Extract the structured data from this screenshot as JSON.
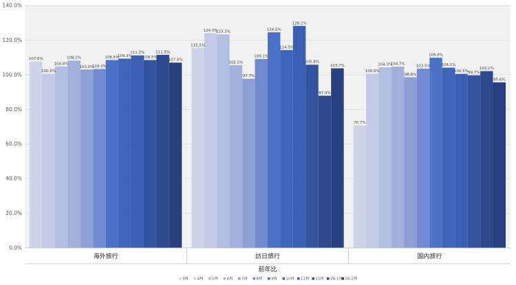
{
  "chart_data": {
    "type": "bar",
    "categories": [
      "海外旅行",
      "訪日旅行",
      "国内旅行"
    ],
    "xlabel": "前年比",
    "ylabel": "",
    "ylim": [
      0,
      140
    ],
    "yticks": [
      "0.0%",
      "20.0%",
      "40.0%",
      "60.0%",
      "80.0%",
      "100.0%",
      "120.0%",
      "140.0%"
    ],
    "grid": true,
    "legend_position": "bottom",
    "series": [
      {
        "name": "3月",
        "color": "#cdd4ea",
        "values": [
          107.6,
          115.5,
          70.7
        ],
        "labels": [
          "107.6%",
          "115.5%",
          "70.7%"
        ]
      },
      {
        "name": "4月",
        "color": "#c3cbe8",
        "values": [
          100.6,
          124.0,
          100.6
        ],
        "labels": [
          "100.6%",
          "124.0%",
          "100.6%"
        ]
      },
      {
        "name": "5月",
        "color": "#b3bee3",
        "values": [
          104.8,
          123.3,
          104.3
        ],
        "labels": [
          "104.8%",
          "123.3%",
          "104.3%"
        ]
      },
      {
        "name": "6月",
        "color": "#a2b0dc",
        "values": [
          108.2,
          105.5,
          104.7
        ],
        "labels": [
          "108.2%",
          "105.5%",
          "104.7%"
        ]
      },
      {
        "name": "7月",
        "color": "#8e9fd6",
        "values": [
          103.0,
          97.7,
          98.6
        ],
        "labels": [
          "103.0%",
          "97.7%",
          "98.6%"
        ]
      },
      {
        "name": "8月",
        "color": "#7189d0",
        "values": [
          103.3,
          109.1,
          103.5
        ],
        "labels": [
          "103.3%",
          "109.1%",
          "103.5%"
        ]
      },
      {
        "name": "9月",
        "color": "#4a73c8",
        "values": [
          108.5,
          124.5,
          109.8
        ],
        "labels": [
          "108.5%",
          "124.5%",
          "109.8%"
        ]
      },
      {
        "name": "10月",
        "color": "#3f65bb",
        "values": [
          109.3,
          114.3,
          104.1
        ],
        "labels": [
          "109.3%",
          "114.3%",
          "104.1%"
        ]
      },
      {
        "name": "11月",
        "color": "#3a5fb2",
        "values": [
          111.2,
          128.2,
          100.5
        ],
        "labels": [
          "111.2%",
          "128.2%",
          "100.5%"
        ]
      },
      {
        "name": "12月",
        "color": "#33539f",
        "values": [
          108.5,
          105.8,
          99.7
        ],
        "labels": [
          "108.5%",
          "105.8%",
          "99.7%"
        ]
      },
      {
        "name": "26-1月",
        "color": "#2e4a8f",
        "values": [
          111.5,
          87.9,
          102.1
        ],
        "labels": [
          "111.5%",
          "87.9%",
          "102.1%"
        ]
      },
      {
        "name": "26-2月",
        "color": "#28407e",
        "values": [
          107.0,
          103.7,
          95.6
        ],
        "labels": [
          "107.0%",
          "103.7%",
          "95.6%"
        ]
      }
    ]
  }
}
